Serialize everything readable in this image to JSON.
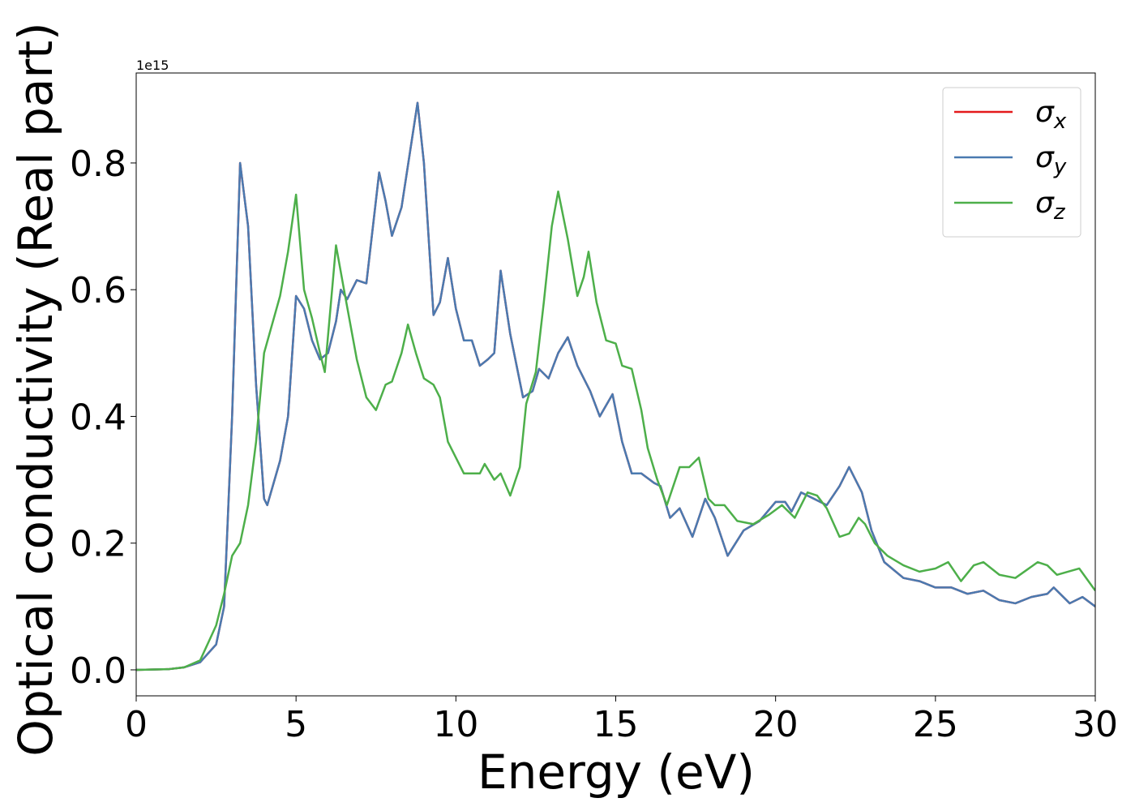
{
  "chart_data": {
    "type": "line",
    "xlabel": "Energy (eV)",
    "ylabel": "Optical conductivity (Real part)",
    "y_offset_label": "1e15",
    "xlim": [
      0,
      30
    ],
    "xticks": [
      0,
      5,
      10,
      15,
      20,
      25,
      30
    ],
    "ylim": [
      -0.041,
      0.942
    ],
    "yticks": [
      {
        "value": 0,
        "label": "0.0"
      },
      0.2,
      0.4,
      0.6,
      0.8
    ],
    "legend": "upper right",
    "series": [
      {
        "name": "σx",
        "color": "#e41a1c",
        "x": [
          0,
          1,
          1.5,
          2,
          2.5,
          2.75,
          3,
          3.25,
          3.5,
          3.75,
          4,
          4.1,
          4.5,
          4.75,
          5,
          5.25,
          5.5,
          5.75,
          6,
          6.25,
          6.4,
          6.6,
          6.9,
          7.2,
          7.6,
          7.8,
          8,
          8.3,
          8.8,
          9,
          9.3,
          9.5,
          9.75,
          10,
          10.25,
          10.5,
          10.75,
          11,
          11.2,
          11.4,
          11.7,
          12.1,
          12.4,
          12.6,
          12.9,
          13.2,
          13.5,
          13.8,
          14.2,
          14.5,
          14.9,
          15.2,
          15.5,
          15.8,
          16.2,
          16.4,
          16.7,
          17,
          17.4,
          17.8,
          18.1,
          18.5,
          19,
          19.5,
          20,
          20.3,
          20.5,
          20.8,
          21.2,
          21.6,
          22,
          22.3,
          22.7,
          23,
          23.4,
          24,
          24.5,
          25,
          25.5,
          26,
          26.5,
          27,
          27.5,
          28,
          28.5,
          28.7,
          29.2,
          29.6,
          30
        ],
        "values": [
          0,
          0.001,
          0.004,
          0.012,
          0.04,
          0.1,
          0.4,
          0.8,
          0.7,
          0.45,
          0.27,
          0.26,
          0.33,
          0.4,
          0.59,
          0.57,
          0.52,
          0.49,
          0.5,
          0.55,
          0.6,
          0.585,
          0.615,
          0.61,
          0.785,
          0.74,
          0.685,
          0.73,
          0.895,
          0.8,
          0.56,
          0.58,
          0.65,
          0.57,
          0.52,
          0.52,
          0.48,
          0.49,
          0.5,
          0.63,
          0.53,
          0.43,
          0.44,
          0.475,
          0.46,
          0.5,
          0.525,
          0.48,
          0.44,
          0.4,
          0.435,
          0.36,
          0.31,
          0.31,
          0.295,
          0.29,
          0.24,
          0.255,
          0.21,
          0.27,
          0.24,
          0.18,
          0.22,
          0.235,
          0.265,
          0.265,
          0.25,
          0.28,
          0.27,
          0.26,
          0.29,
          0.32,
          0.28,
          0.22,
          0.17,
          0.145,
          0.14,
          0.13,
          0.13,
          0.12,
          0.125,
          0.11,
          0.105,
          0.115,
          0.12,
          0.13,
          0.105,
          0.115,
          0.1
        ]
      },
      {
        "name": "σy",
        "color": "#4a7ab0",
        "x": [
          0,
          1,
          1.5,
          2,
          2.5,
          2.75,
          3,
          3.25,
          3.5,
          3.75,
          4,
          4.1,
          4.5,
          4.75,
          5,
          5.25,
          5.5,
          5.75,
          6,
          6.25,
          6.4,
          6.6,
          6.9,
          7.2,
          7.6,
          7.8,
          8,
          8.3,
          8.8,
          9,
          9.3,
          9.5,
          9.75,
          10,
          10.25,
          10.5,
          10.75,
          11,
          11.2,
          11.4,
          11.7,
          12.1,
          12.4,
          12.6,
          12.9,
          13.2,
          13.5,
          13.8,
          14.2,
          14.5,
          14.9,
          15.2,
          15.5,
          15.8,
          16.2,
          16.4,
          16.7,
          17,
          17.4,
          17.8,
          18.1,
          18.5,
          19,
          19.5,
          20,
          20.3,
          20.5,
          20.8,
          21.2,
          21.6,
          22,
          22.3,
          22.7,
          23,
          23.4,
          24,
          24.5,
          25,
          25.5,
          26,
          26.5,
          27,
          27.5,
          28,
          28.5,
          28.7,
          29.2,
          29.6,
          30
        ],
        "values": [
          0,
          0.001,
          0.004,
          0.012,
          0.04,
          0.1,
          0.4,
          0.8,
          0.7,
          0.45,
          0.27,
          0.26,
          0.33,
          0.4,
          0.59,
          0.57,
          0.52,
          0.49,
          0.5,
          0.55,
          0.6,
          0.585,
          0.615,
          0.61,
          0.785,
          0.74,
          0.685,
          0.73,
          0.895,
          0.8,
          0.56,
          0.58,
          0.65,
          0.57,
          0.52,
          0.52,
          0.48,
          0.49,
          0.5,
          0.63,
          0.53,
          0.43,
          0.44,
          0.475,
          0.46,
          0.5,
          0.525,
          0.48,
          0.44,
          0.4,
          0.435,
          0.36,
          0.31,
          0.31,
          0.295,
          0.29,
          0.24,
          0.255,
          0.21,
          0.27,
          0.24,
          0.18,
          0.22,
          0.235,
          0.265,
          0.265,
          0.25,
          0.28,
          0.27,
          0.26,
          0.29,
          0.32,
          0.28,
          0.22,
          0.17,
          0.145,
          0.14,
          0.13,
          0.13,
          0.12,
          0.125,
          0.11,
          0.105,
          0.115,
          0.12,
          0.13,
          0.105,
          0.115,
          0.1
        ]
      },
      {
        "name": "σz",
        "color": "#4daf4a",
        "x": [
          0,
          1,
          1.5,
          2,
          2.5,
          2.75,
          3,
          3.25,
          3.5,
          3.75,
          4,
          4.5,
          4.75,
          5,
          5.25,
          5.5,
          5.75,
          5.9,
          6.25,
          6.5,
          6.9,
          7.2,
          7.5,
          7.8,
          8,
          8.3,
          8.5,
          8.75,
          9,
          9.3,
          9.5,
          9.75,
          10.25,
          10.75,
          10.9,
          11.2,
          11.4,
          11.7,
          12,
          12.2,
          12.5,
          12.75,
          13,
          13.2,
          13.5,
          13.8,
          14,
          14.15,
          14.4,
          14.7,
          15,
          15.2,
          15.5,
          15.8,
          16,
          16.3,
          16.6,
          17,
          17.3,
          17.6,
          17.9,
          18.1,
          18.4,
          18.8,
          19.3,
          19.8,
          20.2,
          20.6,
          21,
          21.3,
          21.6,
          22,
          22.3,
          22.6,
          22.8,
          23.1,
          23.5,
          24,
          24.5,
          25,
          25.4,
          25.8,
          26.2,
          26.5,
          27,
          27.5,
          28.2,
          28.5,
          28.8,
          29.5,
          30
        ],
        "values": [
          0,
          0.001,
          0.004,
          0.015,
          0.07,
          0.12,
          0.18,
          0.2,
          0.26,
          0.36,
          0.5,
          0.59,
          0.66,
          0.75,
          0.6,
          0.555,
          0.5,
          0.47,
          0.67,
          0.6,
          0.49,
          0.43,
          0.41,
          0.45,
          0.455,
          0.5,
          0.545,
          0.5,
          0.46,
          0.45,
          0.43,
          0.36,
          0.31,
          0.31,
          0.325,
          0.3,
          0.31,
          0.275,
          0.32,
          0.42,
          0.47,
          0.58,
          0.7,
          0.755,
          0.68,
          0.59,
          0.62,
          0.66,
          0.58,
          0.52,
          0.515,
          0.48,
          0.475,
          0.41,
          0.35,
          0.3,
          0.26,
          0.32,
          0.32,
          0.335,
          0.27,
          0.26,
          0.26,
          0.235,
          0.23,
          0.245,
          0.26,
          0.24,
          0.28,
          0.275,
          0.255,
          0.21,
          0.215,
          0.24,
          0.23,
          0.2,
          0.18,
          0.165,
          0.155,
          0.16,
          0.17,
          0.14,
          0.165,
          0.17,
          0.15,
          0.145,
          0.17,
          0.165,
          0.15,
          0.16,
          0.125
        ]
      }
    ]
  }
}
